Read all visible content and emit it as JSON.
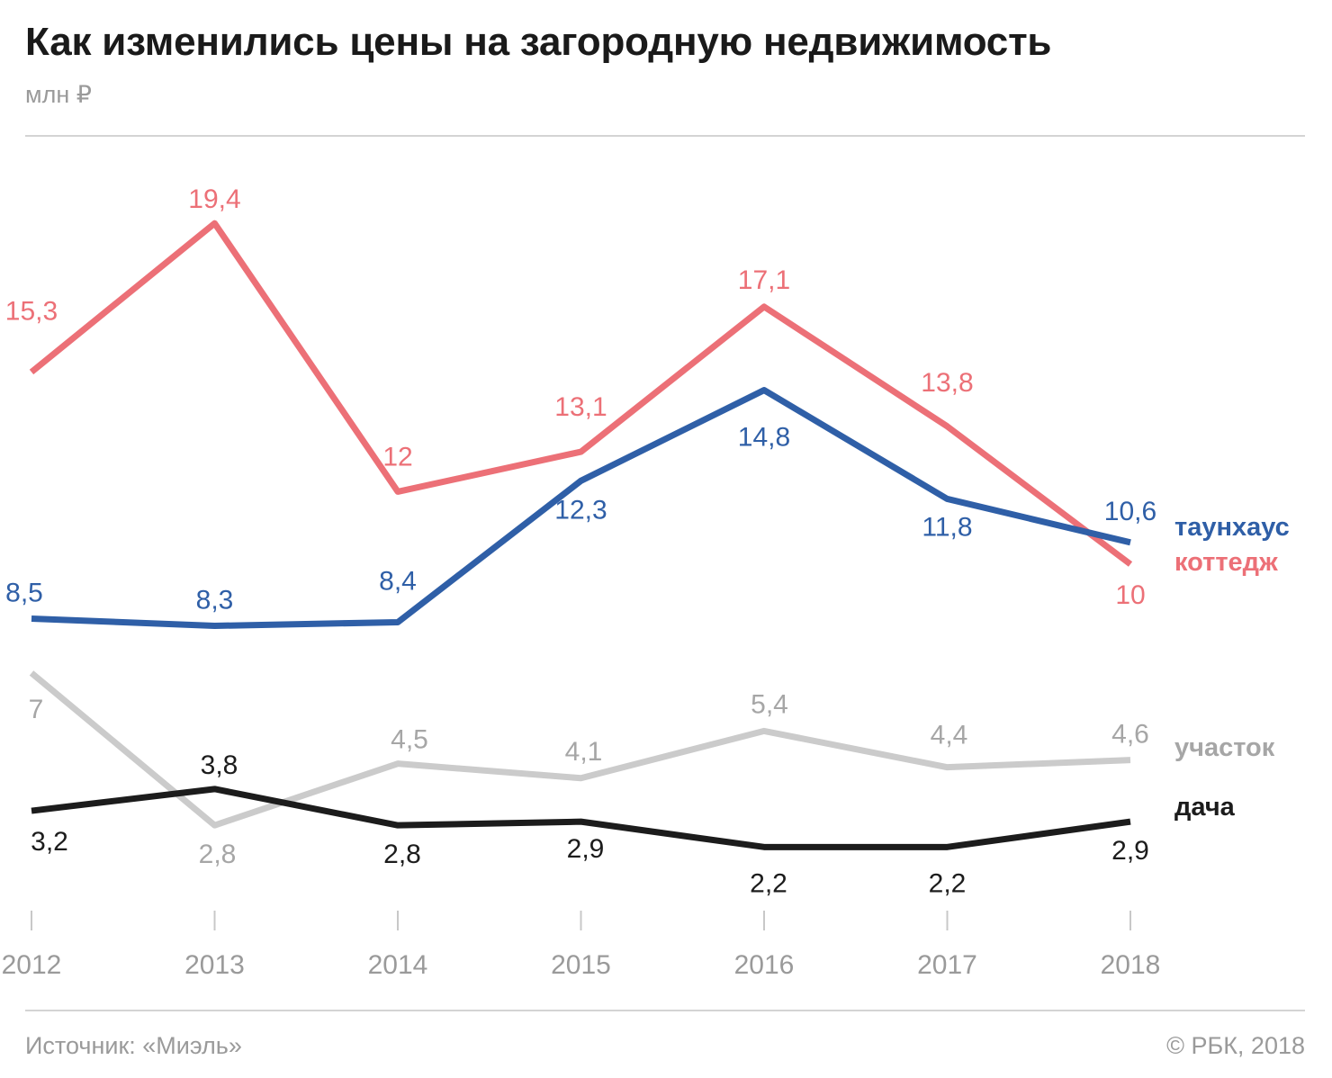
{
  "header": {
    "title": "Как изменились цены на загородную недвижимость",
    "subtitle": "млн ₽"
  },
  "footer": {
    "source": "Источник: «Миэль»",
    "copyright": "© РБК, 2018"
  },
  "chart_data": {
    "type": "line",
    "title": "Как изменились цены на загородную недвижимость",
    "subtitle": "млн ₽",
    "categories": [
      "2012",
      "2013",
      "2014",
      "2015",
      "2016",
      "2017",
      "2018"
    ],
    "ylim": [
      0,
      21
    ],
    "grid": false,
    "legend": "right, inline at line ends",
    "series": [
      {
        "name": "коттедж",
        "color": "#ec7077",
        "values": [
          15.3,
          19.4,
          12,
          13.1,
          17.1,
          13.8,
          10
        ],
        "labels": [
          "15,3",
          "19,4",
          "12",
          "13,1",
          "17,1",
          "13,8",
          "10"
        ]
      },
      {
        "name": "таунхаус",
        "color": "#2f5fa7",
        "values": [
          8.5,
          8.3,
          8.4,
          12.3,
          14.8,
          11.8,
          10.6
        ],
        "labels": [
          "8,5",
          "8,3",
          "8,4",
          "12,3",
          "14,8",
          "11,8",
          "10,6"
        ]
      },
      {
        "name": "участок",
        "color": "#cbcbcb",
        "label_color": "#a6a6a6",
        "values": [
          7,
          2.8,
          4.5,
          4.1,
          5.4,
          4.4,
          4.6
        ],
        "labels": [
          "7",
          "2,8",
          "4,5",
          "4,1",
          "5,4",
          "4,4",
          "4,6"
        ]
      },
      {
        "name": "дача",
        "color": "#1c1c1c",
        "values": [
          3.2,
          3.8,
          2.8,
          2.9,
          2.2,
          2.2,
          2.9
        ],
        "labels": [
          "3,2",
          "3,8",
          "2,8",
          "2,9",
          "2,2",
          "2,2",
          "2,9"
        ]
      }
    ]
  }
}
